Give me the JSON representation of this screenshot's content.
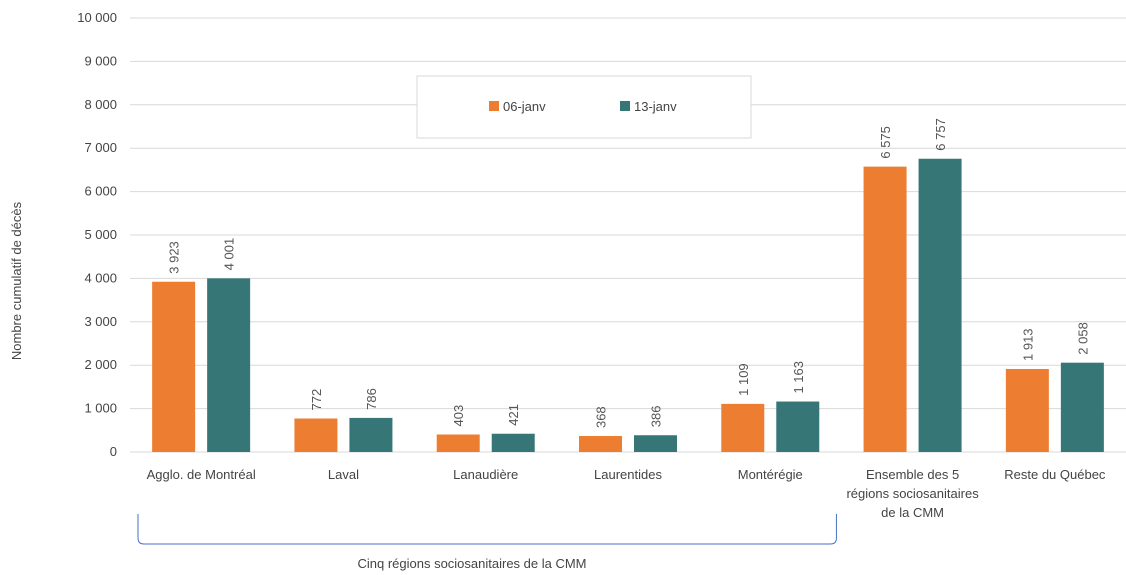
{
  "chart_data": {
    "type": "bar",
    "ylabel": "Nombre cumulatif de décès",
    "ylim": [
      0,
      10000
    ],
    "yticks": [
      0,
      1000,
      2000,
      3000,
      4000,
      5000,
      6000,
      7000,
      8000,
      9000,
      10000
    ],
    "ytick_labels": [
      "0",
      "1 000",
      "2 000",
      "3 000",
      "4 000",
      "5 000",
      "6 000",
      "7 000",
      "8 000",
      "9 000",
      "10 000"
    ],
    "grid": true,
    "legend": "top-center",
    "categories": [
      [
        "Agglo. de Montréal"
      ],
      [
        "Laval"
      ],
      [
        "Lanaudière"
      ],
      [
        "Laurentides"
      ],
      [
        "Montérégie"
      ],
      [
        "Ensemble des 5",
        "régions sociosanitaires",
        "de la CMM"
      ],
      [
        "Reste du Québec"
      ]
    ],
    "series": [
      {
        "name": "06-janv",
        "color": "#ED7D31",
        "values": [
          3923,
          772,
          403,
          368,
          1109,
          6575,
          1913
        ],
        "labels": [
          "3 923",
          "772",
          "403",
          "368",
          "1 109",
          "6 575",
          "1 913"
        ]
      },
      {
        "name": "13-janv",
        "color": "#367677",
        "values": [
          4001,
          786,
          421,
          386,
          1163,
          6757,
          2058
        ],
        "labels": [
          "4 001",
          "786",
          "421",
          "386",
          "1 163",
          "6 757",
          "2 058"
        ]
      }
    ],
    "group_annotation": {
      "text": "Cinq régions sociosanitaires de la CMM",
      "from_category": 0,
      "to_category": 4,
      "color": "#4472C4"
    }
  }
}
